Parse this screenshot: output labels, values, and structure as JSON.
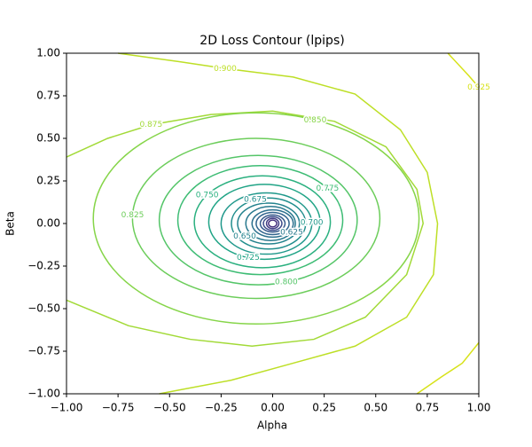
{
  "chart_data": {
    "type": "contour",
    "title": "2D Loss Contour (lpips)",
    "x_label": "Alpha",
    "y_label": "Beta",
    "xlim": [
      -1,
      1
    ],
    "ylim": [
      -1,
      1
    ],
    "xticks": [
      {
        "value": -1,
        "label": "−1.00"
      },
      {
        "value": -0.75,
        "label": "−0.75"
      },
      {
        "value": -0.5,
        "label": "−0.50"
      },
      {
        "value": -0.25,
        "label": "−0.25"
      },
      {
        "value": 0,
        "label": "0.00"
      },
      {
        "value": 0.25,
        "label": "0.25"
      },
      {
        "value": 0.5,
        "label": "0.50"
      },
      {
        "value": 0.75,
        "label": "0.75"
      },
      {
        "value": 1,
        "label": "1.00"
      }
    ],
    "yticks": [
      {
        "value": -1,
        "label": "−1.00"
      },
      {
        "value": -0.75,
        "label": "−0.75"
      },
      {
        "value": -0.5,
        "label": "−0.50"
      },
      {
        "value": -0.25,
        "label": "−0.25"
      },
      {
        "value": 0,
        "label": "0.00"
      },
      {
        "value": 0.25,
        "label": "0.25"
      },
      {
        "value": 0.5,
        "label": "0.50"
      },
      {
        "value": 0.75,
        "label": "0.75"
      },
      {
        "value": 1,
        "label": "1.00"
      }
    ],
    "open_contours": [
      {
        "level": 0.925,
        "label": "0.925",
        "color": "#d7e219",
        "x": [
          0.85,
          0.95,
          1,
          null,
          0.7,
          0.82,
          0.92,
          1
        ],
        "y": [
          1,
          0.87,
          0.8,
          null,
          -1,
          -0.9,
          -0.82,
          -0.7
        ]
      },
      {
        "level": 0.9,
        "label": "0.900",
        "color": "#bddf26",
        "x": [
          -0.75,
          -0.45,
          -0.23,
          0.1,
          0.4,
          0.62,
          0.75,
          0.8,
          0.78,
          0.65,
          0.4,
          0.1,
          -0.2,
          -0.55
        ],
        "y": [
          1,
          0.95,
          0.91,
          0.86,
          0.76,
          0.55,
          0.3,
          0,
          -0.3,
          -0.55,
          -0.72,
          -0.82,
          -0.92,
          -1
        ]
      },
      {
        "level": 0.875,
        "label": "0.875",
        "color": "#a2da37",
        "x": [
          -1,
          -0.8,
          -0.59,
          -0.3,
          0,
          0.3,
          0.55,
          0.7,
          0.73,
          0.65,
          0.45,
          0.2,
          -0.1,
          -0.4,
          -0.7,
          -1
        ],
        "y": [
          0.39,
          0.5,
          0.58,
          0.64,
          0.66,
          0.6,
          0.45,
          0.2,
          0,
          -0.3,
          -0.55,
          -0.68,
          -0.72,
          -0.68,
          -0.6,
          -0.45
        ]
      }
    ],
    "contours": [
      {
        "level": 0.85,
        "label": "0.850",
        "color": "#86d549",
        "cx": -0.08,
        "cy": 0.03,
        "rx": 0.79,
        "ry": 0.62
      },
      {
        "level": 0.825,
        "label": "0.825",
        "color": "#6ccd5a",
        "cx": -0.08,
        "cy": 0.03,
        "rx": 0.6,
        "ry": 0.47
      },
      {
        "level": 0.8,
        "label": "0.800",
        "color": "#54c568",
        "cx": -0.07,
        "cy": 0.02,
        "rx": 0.48,
        "ry": 0.38
      },
      {
        "level": 0.775,
        "label": "0.775",
        "color": "#3dbc74",
        "cx": -0.06,
        "cy": 0.02,
        "rx": 0.4,
        "ry": 0.32
      },
      {
        "level": 0.75,
        "label": "0.750",
        "color": "#2ab07f",
        "cx": -0.05,
        "cy": 0.01,
        "rx": 0.33,
        "ry": 0.27
      },
      {
        "level": 0.725,
        "label": "0.725",
        "color": "#20a486",
        "cx": -0.04,
        "cy": 0.01,
        "rx": 0.27,
        "ry": 0.22
      },
      {
        "level": 0.7,
        "label": "0.700",
        "color": "#1f988b",
        "cx": -0.03,
        "cy": 0,
        "rx": 0.22,
        "ry": 0.18
      },
      {
        "level": 0.675,
        "label": "0.675",
        "color": "#218e8d",
        "cx": -0.02,
        "cy": 0,
        "rx": 0.18,
        "ry": 0.15
      },
      {
        "level": 0.65,
        "label": "0.650",
        "color": "#25838e",
        "cx": -0.02,
        "cy": 0,
        "rx": 0.15,
        "ry": 0.12
      },
      {
        "level": 0.625,
        "label": "0.625",
        "color": "#29798e",
        "cx": -0.01,
        "cy": 0,
        "rx": 0.12,
        "ry": 0.1
      },
      {
        "level": 0.6,
        "color": "#2d708e",
        "cx": 0,
        "cy": 0,
        "rx": 0.1,
        "ry": 0.08
      },
      {
        "level": 0.575,
        "color": "#32658e",
        "cx": 0,
        "cy": 0,
        "rx": 0.08,
        "ry": 0.065
      },
      {
        "level": 0.55,
        "color": "#375a8c",
        "cx": 0,
        "cy": 0,
        "rx": 0.06,
        "ry": 0.05
      },
      {
        "level": 0.525,
        "color": "#3e4c8a",
        "cx": 0,
        "cy": 0,
        "rx": 0.045,
        "ry": 0.04
      },
      {
        "level": 0.5,
        "color": "#433e85",
        "cx": 0,
        "cy": 0,
        "rx": 0.03,
        "ry": 0.03
      },
      {
        "level": 0.475,
        "color": "#46307e",
        "cx": 0,
        "cy": 0,
        "rx": 0.02,
        "ry": 0.02
      }
    ]
  }
}
